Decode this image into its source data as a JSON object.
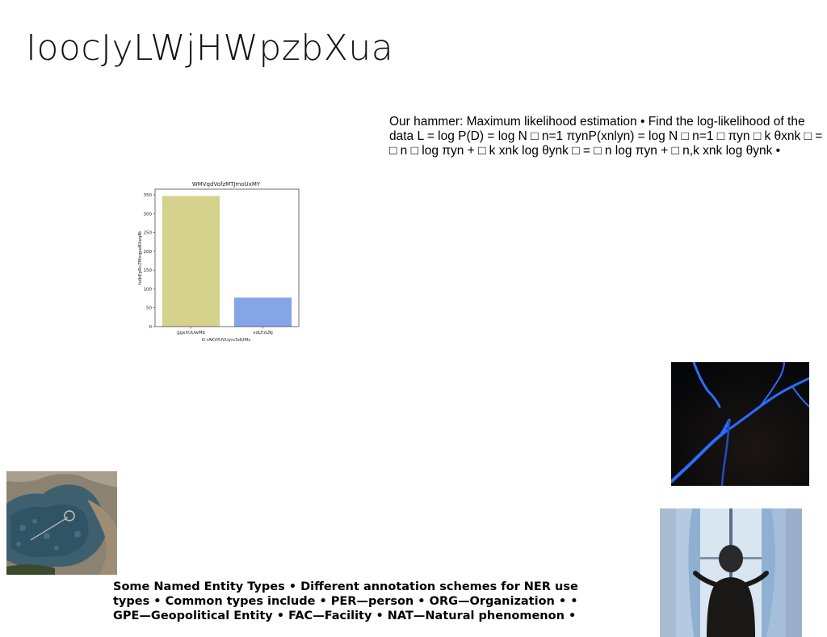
{
  "slide": {
    "title": "IoocJyLWjHWpzbXua",
    "paragraph": "Our hammer: Maximum likelihood estimation • Find the log-likelihood of the data L = log P(D) = log N □ n=1 πynP(xnlyn) = log N □ n=1 □ πyn □ k θxnk □ = □ n □ log πyn + □ k xnk log θynk □ = □ n log πyn + □ n,k xnk log θynk •",
    "ner_paragraph": "Some Named Entity Types • Different annotation schemes for NER use types • Common types include • PER—person • ORG—Organization • • GPE—Geopolitical Entity • FAC—Facility • NAT—Natural phenomenon •"
  },
  "chart_data": {
    "type": "bar",
    "title": "WMVqdVofzMTJmoUxMY",
    "xlabel": "O rAKVfUVUyrcSdUMv",
    "ylabel": "hdbEpRcZMxqpeBXeqBt",
    "categories": [
      "ggxXUUwMb",
      "vdLFzLNj"
    ],
    "values": [
      347,
      77
    ],
    "colors": [
      "#d5d28e",
      "#84a6e6"
    ],
    "ylim": [
      0,
      365
    ],
    "yticks": [
      0,
      50,
      100,
      150,
      200,
      250,
      300,
      350
    ]
  },
  "images": {
    "dark_crack": "dark photo with glowing blue lines",
    "aerial": "aerial view of forest and shoreline",
    "window": "person standing at a window with curtains"
  }
}
